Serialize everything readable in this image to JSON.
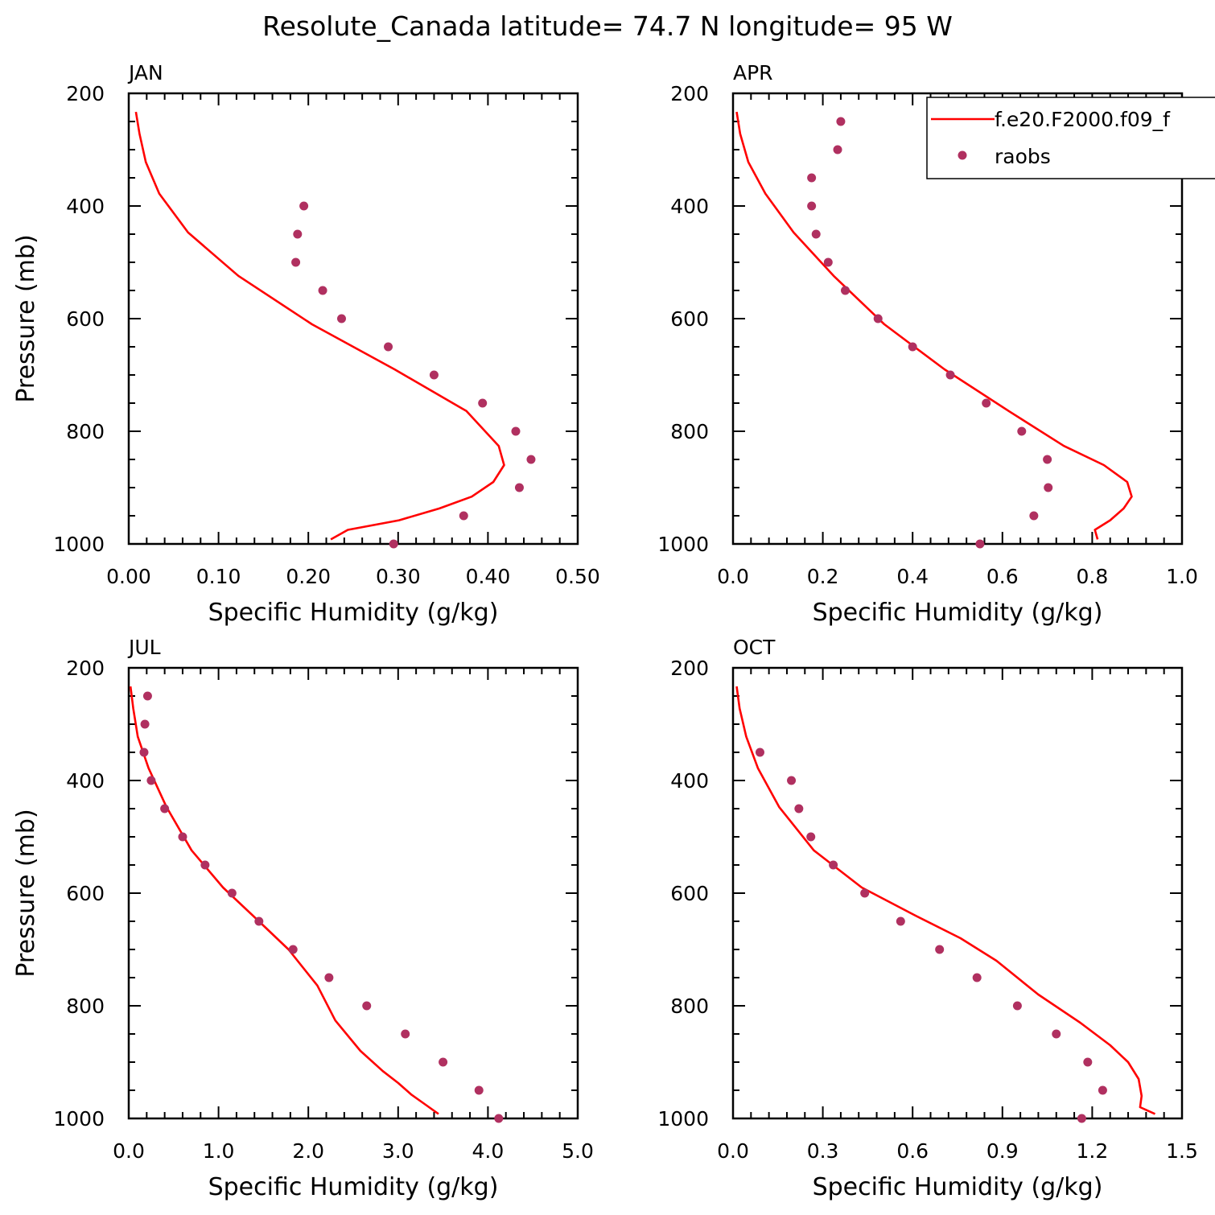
{
  "figure_title": "Resolute_Canada  latitude= 74.7 N longitude= 95 W",
  "legend": {
    "items": [
      {
        "label": "f.e20.F2000.f09_f",
        "kind": "line",
        "color": "#ff0000"
      },
      {
        "label": "raobs",
        "kind": "marker",
        "color": "#b03060"
      }
    ]
  },
  "colors": {
    "model": "#ff0000",
    "obs": "#b03060",
    "frame": "#000000"
  },
  "chart_data": [
    {
      "type": "line",
      "panel_label": "JAN",
      "xlabel": "Specific Humidity (g/kg)",
      "ylabel": "Pressure (mb)",
      "xlim": [
        0,
        0.5
      ],
      "ylim": [
        200,
        1000
      ],
      "y_inverted": true,
      "xtick_labels": [
        "0.00",
        "0.10",
        "0.20",
        "0.30",
        "0.40",
        "0.50"
      ],
      "ytick_labels": [
        "200",
        "400",
        "600",
        "800",
        "1000"
      ],
      "series": [
        {
          "name": "f.e20.F2000.f09_f",
          "kind": "line",
          "x": [
            0.008,
            0.012,
            0.019,
            0.034,
            0.066,
            0.122,
            0.204,
            0.296,
            0.376,
            0.412,
            0.418,
            0.406,
            0.382,
            0.346,
            0.301,
            0.244,
            0.225
          ],
          "y": [
            233,
            272,
            322,
            378,
            447,
            524,
            610,
            690,
            764,
            826,
            860,
            890,
            916,
            937,
            958,
            975,
            992
          ]
        },
        {
          "name": "raobs",
          "kind": "scatter",
          "x": [
            0.195,
            0.188,
            0.186,
            0.216,
            0.237,
            0.289,
            0.34,
            0.394,
            0.431,
            0.448,
            0.435,
            0.373,
            0.295
          ],
          "y": [
            400,
            450,
            500,
            550,
            600,
            650,
            700,
            750,
            800,
            850,
            900,
            950,
            1000
          ]
        }
      ]
    },
    {
      "type": "line",
      "panel_label": "APR",
      "xlabel": "Specific Humidity (g/kg)",
      "ylabel": "",
      "xlim": [
        0,
        1.0
      ],
      "ylim": [
        200,
        1000
      ],
      "y_inverted": true,
      "xtick_labels": [
        "0.0",
        "0.2",
        "0.4",
        "0.6",
        "0.8",
        "1.0"
      ],
      "ytick_labels": [
        "200",
        "400",
        "600",
        "800",
        "1000"
      ],
      "series": [
        {
          "name": "f.e20.F2000.f09_f",
          "kind": "line",
          "x": [
            0.008,
            0.016,
            0.034,
            0.072,
            0.135,
            0.224,
            0.337,
            0.471,
            0.614,
            0.737,
            0.826,
            0.878,
            0.888,
            0.87,
            0.84,
            0.806,
            0.812
          ],
          "y": [
            233,
            272,
            322,
            378,
            447,
            524,
            610,
            690,
            764,
            826,
            860,
            890,
            916,
            937,
            958,
            975,
            992
          ]
        },
        {
          "name": "raobs",
          "kind": "scatter",
          "x": [
            0.24,
            0.233,
            0.175,
            0.175,
            0.185,
            0.212,
            0.25,
            0.323,
            0.4,
            0.484,
            0.564,
            0.643,
            0.7,
            0.702,
            0.67,
            0.55
          ],
          "y": [
            250,
            300,
            350,
            400,
            450,
            500,
            550,
            600,
            650,
            700,
            750,
            800,
            850,
            900,
            950,
            1000
          ]
        }
      ]
    },
    {
      "type": "line",
      "panel_label": "JUL",
      "xlabel": "Specific Humidity (g/kg)",
      "ylabel": "Pressure (mb)",
      "xlim": [
        0,
        5.0
      ],
      "ylim": [
        200,
        1000
      ],
      "y_inverted": true,
      "xtick_labels": [
        "0.0",
        "1.0",
        "2.0",
        "3.0",
        "4.0",
        "5.0"
      ],
      "ytick_labels": [
        "200",
        "400",
        "600",
        "800",
        "1000"
      ],
      "series": [
        {
          "name": "f.e20.F2000.f09_f",
          "kind": "line",
          "x": [
            0.02,
            0.05,
            0.1,
            0.22,
            0.42,
            0.7,
            1.05,
            1.45,
            1.78,
            2.1,
            2.3,
            2.58,
            2.83,
            3.0,
            3.15,
            3.3,
            3.45
          ],
          "y": [
            233,
            272,
            322,
            378,
            447,
            524,
            590,
            650,
            700,
            764,
            826,
            880,
            916,
            937,
            958,
            975,
            992
          ]
        },
        {
          "name": "raobs",
          "kind": "scatter",
          "x": [
            0.21,
            0.18,
            0.17,
            0.25,
            0.4,
            0.6,
            0.85,
            1.15,
            1.45,
            1.83,
            2.23,
            2.65,
            3.08,
            3.5,
            3.9,
            4.12
          ],
          "y": [
            250,
            300,
            350,
            400,
            450,
            500,
            550,
            600,
            650,
            700,
            750,
            800,
            850,
            900,
            950,
            1000
          ]
        }
      ]
    },
    {
      "type": "line",
      "panel_label": "OCT",
      "xlabel": "Specific Humidity (g/kg)",
      "ylabel": "",
      "xlim": [
        0,
        1.5
      ],
      "ylim": [
        200,
        1000
      ],
      "y_inverted": true,
      "xtick_labels": [
        "0.0",
        "0.3",
        "0.6",
        "0.9",
        "1.2",
        "1.5"
      ],
      "ytick_labels": [
        "200",
        "400",
        "600",
        "800",
        "1000"
      ],
      "series": [
        {
          "name": "f.e20.F2000.f09_f",
          "kind": "line",
          "x": [
            0.012,
            0.022,
            0.044,
            0.083,
            0.154,
            0.27,
            0.43,
            0.61,
            0.76,
            0.88,
            1.02,
            1.16,
            1.26,
            1.32,
            1.355,
            1.365,
            1.36,
            1.41
          ],
          "y": [
            233,
            272,
            322,
            378,
            447,
            524,
            590,
            640,
            680,
            720,
            780,
            830,
            870,
            900,
            930,
            960,
            980,
            992
          ]
        },
        {
          "name": "raobs",
          "kind": "scatter",
          "x": [
            0.09,
            0.195,
            0.22,
            0.26,
            0.335,
            0.44,
            0.56,
            0.69,
            0.815,
            0.95,
            1.08,
            1.185,
            1.235,
            1.165
          ],
          "y": [
            350,
            400,
            450,
            500,
            550,
            600,
            650,
            700,
            750,
            800,
            850,
            900,
            950,
            1000
          ]
        }
      ]
    }
  ]
}
